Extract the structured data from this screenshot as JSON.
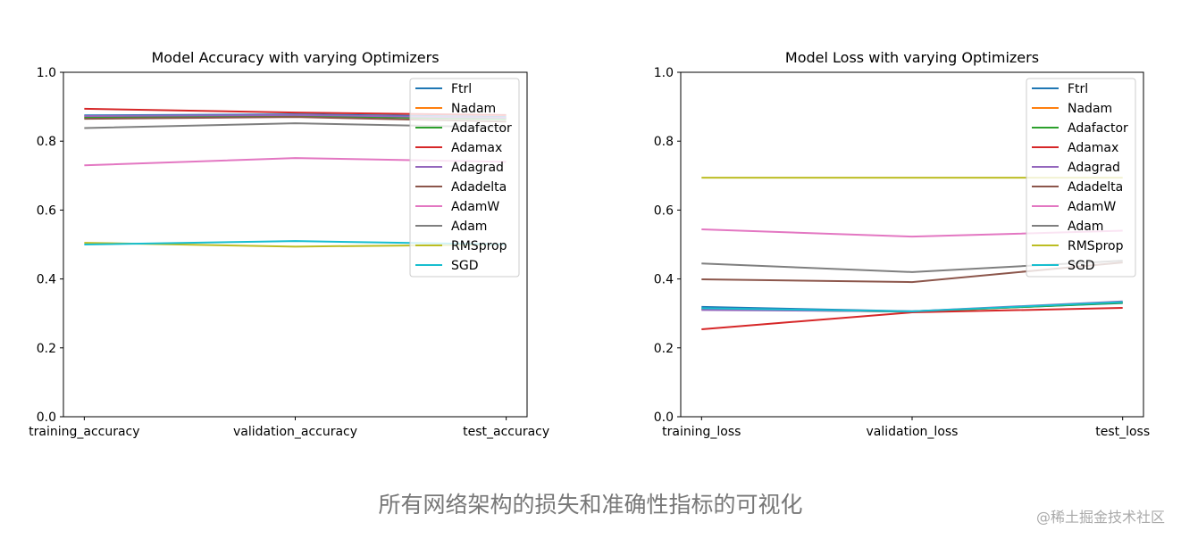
{
  "chart_data": [
    {
      "type": "line",
      "title": "Model Accuracy with varying Optimizers",
      "categories": [
        "training_accuracy",
        "validation_accuracy",
        "test_accuracy"
      ],
      "ylim": [
        0,
        1
      ],
      "yticks": [
        "0.0",
        "0.2",
        "0.4",
        "0.6",
        "0.8",
        "1.0"
      ],
      "legend": "top-right",
      "series": [
        {
          "name": "Ftrl",
          "color": "#1f77b4",
          "values": [
            0.875,
            0.878,
            0.87
          ]
        },
        {
          "name": "Nadam",
          "color": "#ff7f0e",
          "values": [
            0.87,
            0.874,
            0.866
          ]
        },
        {
          "name": "Adafactor",
          "color": "#2ca02c",
          "values": [
            0.868,
            0.873,
            0.864
          ]
        },
        {
          "name": "Adamax",
          "color": "#d62728",
          "values": [
            0.894,
            0.883,
            0.876
          ]
        },
        {
          "name": "Adagrad",
          "color": "#9467bd",
          "values": [
            0.873,
            0.876,
            0.868
          ]
        },
        {
          "name": "Adadelta",
          "color": "#8c564b",
          "values": [
            0.865,
            0.87,
            0.857
          ]
        },
        {
          "name": "AdamW",
          "color": "#e377c2",
          "values": [
            0.73,
            0.751,
            0.74
          ]
        },
        {
          "name": "Adam",
          "color": "#7f7f7f",
          "values": [
            0.838,
            0.852,
            0.84
          ]
        },
        {
          "name": "RMSprop",
          "color": "#bcbd22",
          "values": [
            0.505,
            0.494,
            0.5
          ]
        },
        {
          "name": "SGD",
          "color": "#17becf",
          "values": [
            0.5,
            0.51,
            0.5
          ]
        }
      ]
    },
    {
      "type": "line",
      "title": "Model Loss with varying Optimizers",
      "categories": [
        "training_loss",
        "validation_loss",
        "test_loss"
      ],
      "ylim": [
        0,
        1
      ],
      "yticks": [
        "0.0",
        "0.2",
        "0.4",
        "0.6",
        "0.8",
        "1.0"
      ],
      "legend": "top-right",
      "series": [
        {
          "name": "Ftrl",
          "color": "#1f77b4",
          "values": [
            0.319,
            0.306,
            0.33
          ]
        },
        {
          "name": "Nadam",
          "color": "#ff7f0e",
          "values": [
            0.312,
            0.305,
            0.332
          ]
        },
        {
          "name": "Adafactor",
          "color": "#2ca02c",
          "values": [
            0.313,
            0.305,
            0.331
          ]
        },
        {
          "name": "Adamax",
          "color": "#d62728",
          "values": [
            0.254,
            0.303,
            0.316
          ]
        },
        {
          "name": "Adagrad",
          "color": "#9467bd",
          "values": [
            0.31,
            0.306,
            0.335
          ]
        },
        {
          "name": "Adadelta",
          "color": "#8c564b",
          "values": [
            0.399,
            0.391,
            0.448
          ]
        },
        {
          "name": "AdamW",
          "color": "#e377c2",
          "values": [
            0.544,
            0.523,
            0.54
          ]
        },
        {
          "name": "Adam",
          "color": "#7f7f7f",
          "values": [
            0.445,
            0.42,
            0.453
          ]
        },
        {
          "name": "RMSprop",
          "color": "#bcbd22",
          "values": [
            0.694,
            0.694,
            0.694
          ]
        },
        {
          "name": "SGD",
          "color": "#17becf",
          "values": [
            0.315,
            0.306,
            0.333
          ]
        }
      ]
    }
  ],
  "caption": "所有网络架构的损失和准确性指标的可视化",
  "watermark": "@稀土掘金技术社区"
}
